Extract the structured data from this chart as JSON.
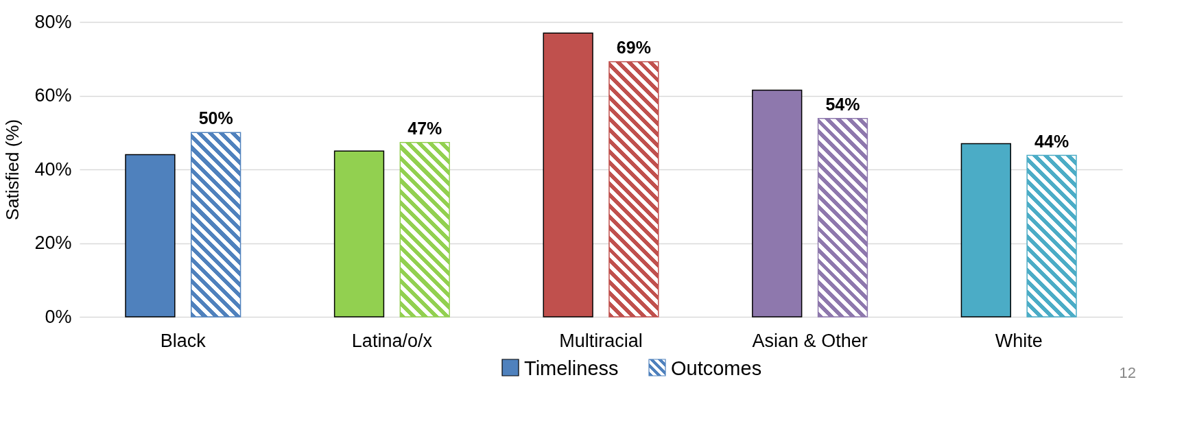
{
  "chart_data": {
    "type": "bar",
    "ylabel": "Satisfied (%)",
    "categories": [
      "Black",
      "Latina/o/x",
      "Multiracial",
      "Asian & Other",
      "White"
    ],
    "series": [
      {
        "name": "Timeliness",
        "color": "#4f81bd",
        "colors": [
          "#4f81bd",
          "#92d050",
          "#c0504d",
          "#8e78ad",
          "#4bacc6"
        ],
        "values": [
          44,
          45,
          77,
          61.5,
          47
        ]
      },
      {
        "name": "Outcomes",
        "color": "#4f81bd",
        "colors": [
          "#4f81bd",
          "#92d050",
          "#c0504d",
          "#8e78ad",
          "#4bacc6"
        ],
        "values": [
          50,
          47.3,
          69.2,
          53.8,
          43.8
        ],
        "value_labels": [
          "50%",
          "47%",
          "69%",
          "54%",
          "44%"
        ]
      }
    ],
    "ylim": [
      0,
      80
    ],
    "yticks": [
      {
        "value": 0,
        "label": "0%"
      },
      {
        "value": 20,
        "label": "20%"
      },
      {
        "value": 40,
        "label": "40%"
      },
      {
        "value": 60,
        "label": "60%"
      },
      {
        "value": 80,
        "label": "80%"
      }
    ],
    "grid": "y",
    "legend": "bottom",
    "annotations": [
      "12"
    ]
  }
}
